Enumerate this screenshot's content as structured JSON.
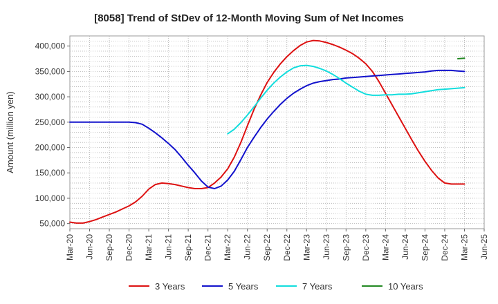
{
  "chart_data": {
    "type": "line",
    "title": "[8058]  Trend of StDev of 12-Month Moving Sum of Net Incomes",
    "ylabel": "Amount (million yen)",
    "xlabel": "",
    "ylim": [
      40000,
      420000
    ],
    "yticks": [
      50000,
      100000,
      150000,
      200000,
      250000,
      300000,
      350000,
      400000
    ],
    "ytick_labels": [
      "50,000",
      "100,000",
      "150,000",
      "200,000",
      "250,000",
      "300,000",
      "350,000",
      "400,000"
    ],
    "xtick_labels": [
      "Mar-20",
      "Jun-20",
      "Sep-20",
      "Dec-20",
      "Mar-21",
      "Jun-21",
      "Sep-21",
      "Dec-21",
      "Mar-22",
      "Jun-22",
      "Sep-22",
      "Dec-22",
      "Mar-23",
      "Jun-23",
      "Sep-23",
      "Dec-23",
      "Mar-24",
      "Jun-24",
      "Sep-24",
      "Dec-24",
      "Mar-25",
      "Jun-25"
    ],
    "grid": true,
    "legend_position": "bottom",
    "series": [
      {
        "name": "3 Years",
        "color": "#dd1111",
        "x": [
          "Mar-20",
          "Apr-20",
          "May-20",
          "Jun-20",
          "Jul-20",
          "Aug-20",
          "Sep-20",
          "Oct-20",
          "Nov-20",
          "Dec-20",
          "Jan-21",
          "Feb-21",
          "Mar-21",
          "Apr-21",
          "May-21",
          "Jun-21",
          "Jul-21",
          "Aug-21",
          "Sep-21",
          "Oct-21",
          "Nov-21",
          "Dec-21",
          "Jan-22",
          "Feb-22",
          "Mar-22",
          "Apr-22",
          "May-22",
          "Jun-22",
          "Jul-22",
          "Aug-22",
          "Sep-22",
          "Oct-22",
          "Nov-22",
          "Dec-22",
          "Jan-23",
          "Feb-23",
          "Mar-23",
          "Apr-23",
          "May-23",
          "Jun-23",
          "Jul-23",
          "Aug-23",
          "Sep-23",
          "Oct-23",
          "Nov-23",
          "Dec-23",
          "Jan-24",
          "Feb-24",
          "Mar-24",
          "Apr-24",
          "May-24",
          "Jun-24",
          "Jul-24",
          "Aug-24",
          "Sep-24",
          "Oct-24",
          "Nov-24",
          "Dec-24",
          "Jan-25",
          "Feb-25",
          "Mar-25"
        ],
        "values": [
          53000,
          51000,
          51000,
          54000,
          58000,
          63000,
          68000,
          73000,
          79000,
          85000,
          93000,
          104000,
          118000,
          127000,
          130000,
          129000,
          127000,
          124000,
          121000,
          119000,
          119000,
          121000,
          130000,
          142000,
          158000,
          181000,
          210000,
          243000,
          275000,
          303000,
          328000,
          348000,
          365000,
          379000,
          391000,
          401000,
          408000,
          411000,
          410000,
          407000,
          403000,
          398000,
          392000,
          385000,
          376000,
          365000,
          350000,
          330000,
          307000,
          284000,
          261000,
          238000,
          215000,
          193000,
          173000,
          155000,
          140000,
          130000,
          128000,
          128000,
          128000
        ]
      },
      {
        "name": "5 Years",
        "color": "#1111cc",
        "x": [
          "Mar-20",
          "Apr-20",
          "May-20",
          "Jun-20",
          "Jul-20",
          "Aug-20",
          "Sep-20",
          "Oct-20",
          "Nov-20",
          "Dec-20",
          "Jan-21",
          "Feb-21",
          "Mar-21",
          "Apr-21",
          "May-21",
          "Jun-21",
          "Jul-21",
          "Aug-21",
          "Sep-21",
          "Oct-21",
          "Nov-21",
          "Dec-21",
          "Jan-22",
          "Feb-22",
          "Mar-22",
          "Apr-22",
          "May-22",
          "Jun-22",
          "Jul-22",
          "Aug-22",
          "Sep-22",
          "Oct-22",
          "Nov-22",
          "Dec-22",
          "Jan-23",
          "Feb-23",
          "Mar-23",
          "Apr-23",
          "May-23",
          "Jun-23",
          "Jul-23",
          "Aug-23",
          "Sep-23",
          "Oct-23",
          "Nov-23",
          "Dec-23",
          "Jan-24",
          "Feb-24",
          "Mar-24",
          "Apr-24",
          "May-24",
          "Jun-24",
          "Jul-24",
          "Aug-24",
          "Sep-24",
          "Oct-24",
          "Nov-24",
          "Dec-24",
          "Jan-25",
          "Feb-25",
          "Mar-25"
        ],
        "values": [
          250000,
          250000,
          250000,
          250000,
          250000,
          250000,
          250000,
          250000,
          250000,
          250000,
          249000,
          246000,
          238000,
          229000,
          219000,
          208000,
          196000,
          181000,
          165000,
          150000,
          134000,
          122000,
          119000,
          124000,
          136000,
          153000,
          176000,
          200000,
          220000,
          239000,
          256000,
          271000,
          285000,
          297000,
          307000,
          315000,
          322000,
          327000,
          330000,
          332000,
          334000,
          335000,
          337000,
          338000,
          339000,
          340000,
          341000,
          342000,
          343000,
          344000,
          345000,
          346000,
          347000,
          348000,
          349000,
          351000,
          352000,
          352000,
          352000,
          351000,
          350000
        ]
      },
      {
        "name": "7 Years",
        "color": "#11dddd",
        "x": [
          "Mar-22",
          "Apr-22",
          "May-22",
          "Jun-22",
          "Jul-22",
          "Aug-22",
          "Sep-22",
          "Oct-22",
          "Nov-22",
          "Dec-22",
          "Jan-23",
          "Feb-23",
          "Mar-23",
          "Apr-23",
          "May-23",
          "Jun-23",
          "Jul-23",
          "Aug-23",
          "Sep-23",
          "Oct-23",
          "Nov-23",
          "Dec-23",
          "Jan-24",
          "Feb-24",
          "Mar-24",
          "Apr-24",
          "May-24",
          "Jun-24",
          "Jul-24",
          "Aug-24",
          "Sep-24",
          "Oct-24",
          "Nov-24",
          "Dec-24",
          "Jan-25",
          "Feb-25",
          "Mar-25"
        ],
        "values": [
          227000,
          236000,
          249000,
          264000,
          280000,
          297000,
          313000,
          327000,
          339000,
          349000,
          357000,
          361000,
          362000,
          360000,
          356000,
          351000,
          344000,
          336000,
          327000,
          319000,
          311000,
          305000,
          303000,
          303000,
          304000,
          304000,
          305000,
          305000,
          306000,
          308000,
          310000,
          312000,
          314000,
          315000,
          316000,
          317000,
          318000
        ]
      },
      {
        "name": "10 Years",
        "color": "#228822",
        "x": [
          "Feb-25",
          "Mar-25"
        ],
        "values": [
          375000,
          376000
        ]
      }
    ]
  }
}
